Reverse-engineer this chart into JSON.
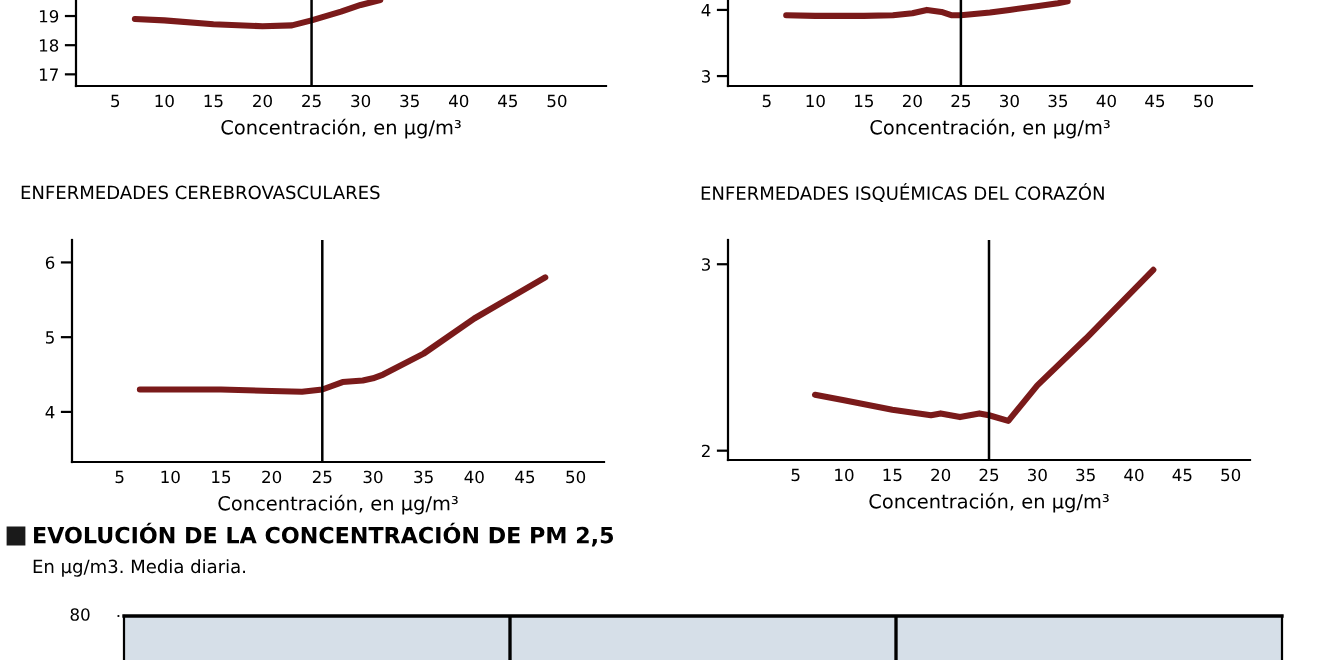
{
  "chart_data": [
    {
      "type": "line",
      "xlabel": "Concentración, en µg/m³",
      "xlim": [
        1,
        55
      ],
      "xticks": [
        5,
        10,
        15,
        20,
        25,
        30,
        35,
        40,
        45,
        50
      ],
      "ylim": [
        16.6,
        19.55
      ],
      "yticks": [
        17,
        18,
        19
      ],
      "ref_lines": [
        {
          "axis": "x",
          "value": 25,
          "color": "#000000"
        }
      ],
      "series": [
        {
          "color": "#7a1a1a",
          "x": [
            7,
            10,
            15,
            20,
            23,
            25,
            28,
            30,
            32
          ],
          "values": [
            18.9,
            18.85,
            18.72,
            18.65,
            18.68,
            18.85,
            19.15,
            19.38,
            19.55
          ]
        }
      ]
    },
    {
      "type": "line",
      "xlabel": "Concentración, en µg/m³",
      "xlim": [
        1,
        55
      ],
      "xticks": [
        5,
        10,
        15,
        20,
        25,
        30,
        35,
        40,
        45,
        50
      ],
      "ylim": [
        2.85,
        4.15
      ],
      "yticks": [
        3,
        4
      ],
      "ref_lines": [
        {
          "axis": "x",
          "value": 25,
          "color": "#000000"
        }
      ],
      "series": [
        {
          "color": "#7a1a1a",
          "x": [
            7,
            10,
            15,
            18,
            20,
            21.5,
            23,
            24,
            25,
            28,
            30,
            33,
            35,
            36
          ],
          "values": [
            3.92,
            3.91,
            3.91,
            3.92,
            3.95,
            4.0,
            3.97,
            3.92,
            3.92,
            3.96,
            4.0,
            4.06,
            4.1,
            4.13
          ]
        }
      ]
    },
    {
      "type": "line",
      "title": "ENFERMEDADES CEREBROVASCULARES",
      "xlabel": "Concentración, en µg/m³",
      "xlim": [
        0.3,
        52.8
      ],
      "xticks": [
        5,
        10,
        15,
        20,
        25,
        30,
        35,
        40,
        45,
        50
      ],
      "ylim": [
        3.33,
        6.3
      ],
      "yticks": [
        4,
        5,
        6
      ],
      "ref_lines": [
        {
          "axis": "x",
          "value": 25,
          "color": "#000000"
        }
      ],
      "series": [
        {
          "color": "#7a1a1a",
          "x": [
            7,
            15,
            20,
            23,
            25,
            27,
            29,
            30,
            31,
            35,
            40,
            47
          ],
          "values": [
            4.3,
            4.3,
            4.28,
            4.27,
            4.3,
            4.4,
            4.42,
            4.45,
            4.5,
            4.78,
            5.25,
            5.8
          ]
        }
      ]
    },
    {
      "type": "line",
      "title": "ENFERMEDADES ISQUÉMICAS DEL CORAZÓN",
      "xlabel": "Concentración, en µg/m³",
      "xlim": [
        -2,
        52
      ],
      "xticks": [
        5,
        10,
        15,
        20,
        25,
        30,
        35,
        40,
        45,
        50
      ],
      "ylim": [
        1.95,
        3.13
      ],
      "yticks": [
        2,
        3
      ],
      "ref_lines": [
        {
          "axis": "x",
          "value": 25,
          "color": "#000000"
        }
      ],
      "series": [
        {
          "color": "#7a1a1a",
          "x": [
            7,
            10,
            15,
            19,
            20,
            22,
            24,
            25,
            27,
            30,
            35,
            42
          ],
          "values": [
            2.3,
            2.27,
            2.22,
            2.19,
            2.2,
            2.18,
            2.2,
            2.19,
            2.16,
            2.35,
            2.6,
            2.97
          ]
        }
      ]
    },
    {
      "type": "other",
      "title": "EVOLUCIÓN DE LA CONCENTRACIÓN DE PM 2,5",
      "subtitle": "En µg/m3. Media diaria.",
      "annotations": [
        "80"
      ]
    }
  ]
}
